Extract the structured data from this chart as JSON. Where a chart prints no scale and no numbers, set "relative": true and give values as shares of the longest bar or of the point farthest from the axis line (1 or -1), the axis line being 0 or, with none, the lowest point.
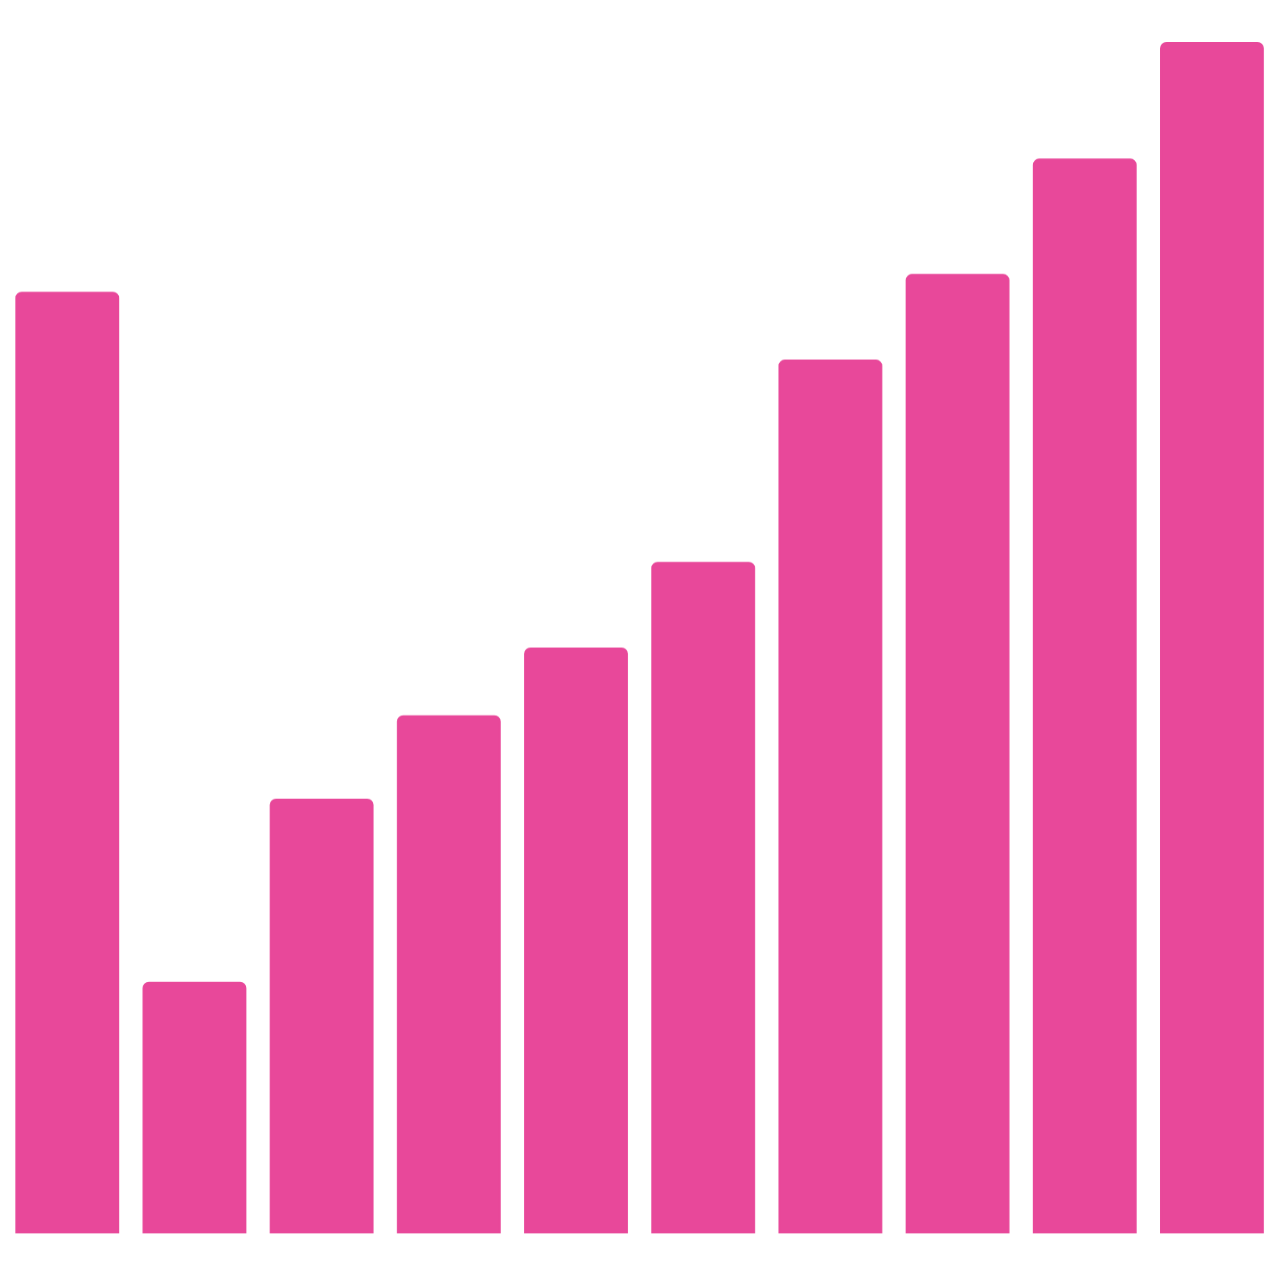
{
  "chart_data": {
    "type": "bar",
    "relative": true,
    "categories": [
      null,
      null,
      null,
      null,
      null,
      null,
      null,
      null,
      null,
      null
    ],
    "values": [
      0.79,
      0.21,
      0.364,
      0.434,
      0.491,
      0.563,
      0.733,
      0.805,
      0.902,
      1
    ],
    "color": "#e8489a"
  }
}
